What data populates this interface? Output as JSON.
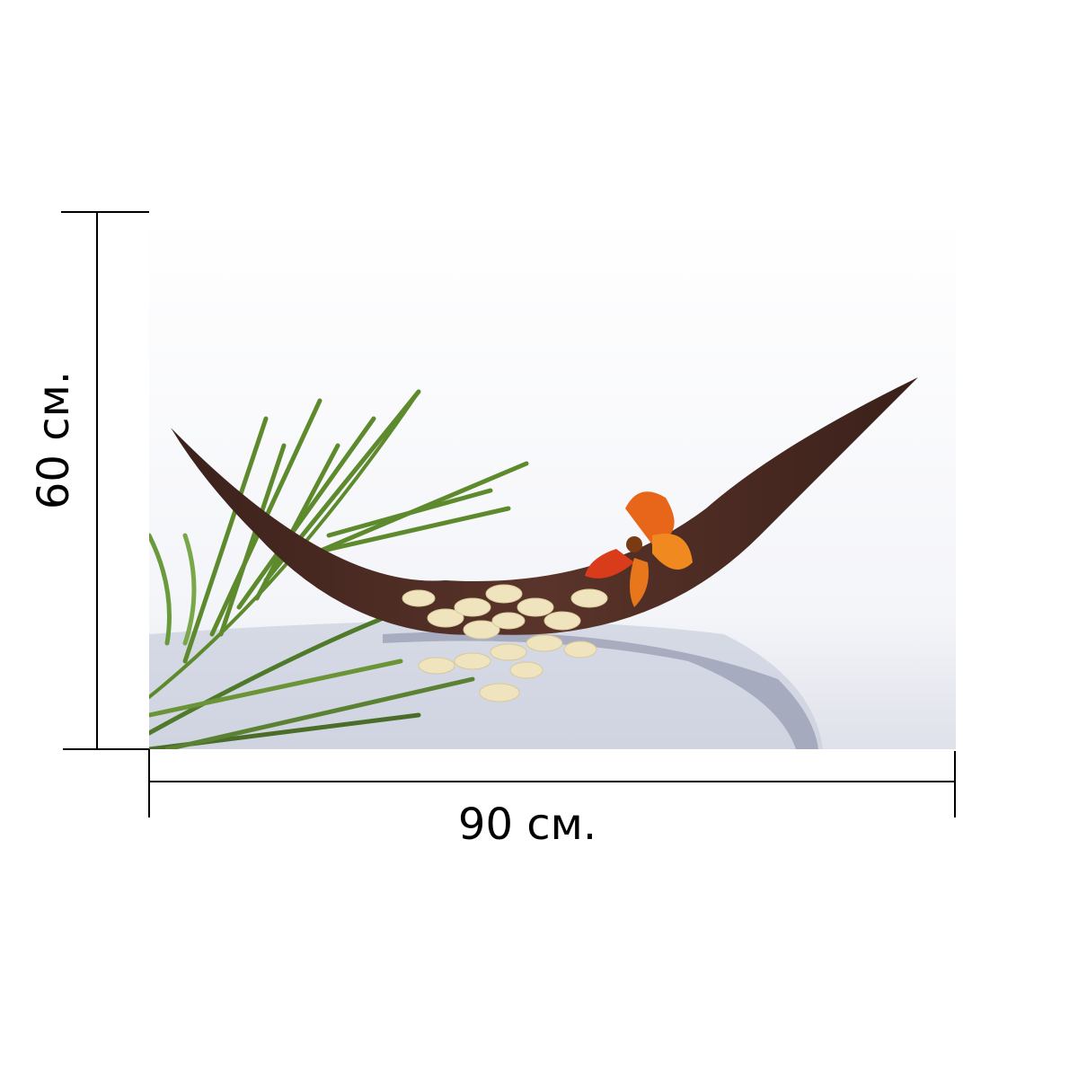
{
  "dimensions": {
    "width_label": "90 см.",
    "height_label": "60 см."
  },
  "photo": {
    "subject": "palm-leaf-boat-with-orchid",
    "colors": {
      "boat": "#4a2a22",
      "leaf": "#5e8a2e",
      "flower": "#e8661a",
      "discs": "#efe4bd",
      "surface": "#d6d9e6"
    }
  }
}
